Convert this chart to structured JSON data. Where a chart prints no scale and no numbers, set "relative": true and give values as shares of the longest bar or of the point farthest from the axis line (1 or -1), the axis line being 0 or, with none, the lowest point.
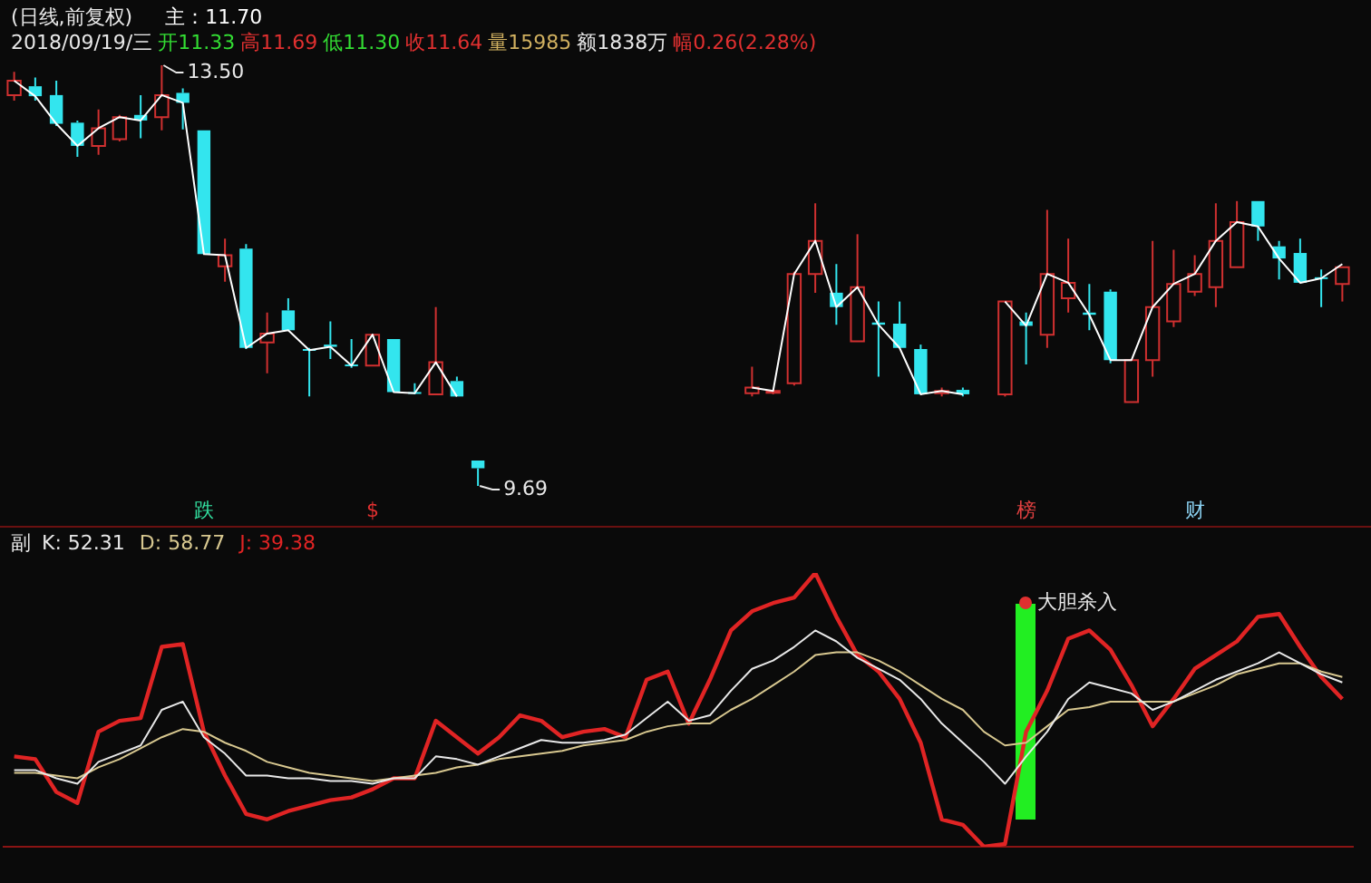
{
  "chart_data": [
    {
      "type": "candlestick",
      "title": "(日线,前复权)",
      "subtitle": "2018/09/19/三 开11.33 高11.69 低11.30 收11.64 量15985 额1838万 幅0.26(2.28%)",
      "categories": [
        null,
        null,
        null,
        null,
        null,
        null,
        null,
        null,
        null,
        null,
        null,
        null,
        null,
        null,
        null,
        null,
        null,
        null,
        null,
        null,
        null,
        null,
        null,
        null,
        null,
        null,
        null,
        null,
        null,
        null,
        null,
        null,
        null,
        null,
        null,
        null,
        null,
        null,
        null,
        null,
        null,
        null,
        null,
        null,
        null,
        null,
        null,
        null,
        null,
        null,
        null,
        null,
        null,
        null,
        null,
        null,
        null,
        null,
        null,
        null,
        null,
        null,
        null,
        null
      ],
      "ohlc": [
        [
          13.23,
          13.44,
          13.18,
          13.36
        ],
        [
          13.31,
          13.39,
          13.18,
          13.22
        ],
        [
          13.23,
          13.36,
          12.95,
          12.97
        ],
        [
          12.98,
          13.0,
          12.67,
          12.77
        ],
        [
          12.77,
          13.1,
          12.69,
          12.93
        ],
        [
          12.83,
          13.05,
          12.81,
          13.03
        ],
        [
          13.05,
          13.23,
          12.84,
          13.0
        ],
        [
          13.03,
          13.5,
          12.91,
          13.23
        ],
        [
          13.25,
          13.29,
          12.92,
          13.16
        ],
        [
          12.91,
          12.91,
          11.79,
          11.79
        ],
        [
          11.68,
          11.93,
          11.54,
          11.78
        ],
        [
          11.84,
          11.88,
          10.93,
          10.94
        ],
        [
          10.99,
          11.26,
          10.71,
          11.07
        ],
        [
          11.28,
          11.39,
          11.1,
          11.1
        ],
        [
          10.93,
          10.94,
          10.5,
          10.92
        ],
        [
          10.97,
          11.18,
          10.84,
          10.95
        ],
        [
          10.79,
          11.02,
          10.76,
          10.78
        ],
        [
          10.78,
          11.06,
          10.78,
          11.06
        ],
        [
          11.02,
          11.02,
          10.54,
          10.54
        ],
        [
          10.54,
          10.62,
          10.52,
          10.53
        ],
        [
          10.52,
          11.31,
          10.52,
          10.81
        ],
        [
          10.64,
          10.68,
          10.5,
          10.5
        ],
        [
          9.92,
          9.92,
          9.69,
          9.85
        ],
        null,
        null,
        null,
        null,
        null,
        null,
        null,
        null,
        null,
        null,
        null,
        null,
        [
          10.53,
          10.77,
          10.5,
          10.58
        ],
        [
          10.54,
          10.56,
          10.52,
          10.55
        ],
        [
          10.62,
          11.63,
          10.6,
          11.61
        ],
        [
          11.61,
          12.25,
          11.44,
          11.91
        ],
        [
          11.44,
          11.7,
          11.15,
          11.31
        ],
        [
          11.0,
          11.97,
          11.0,
          11.49
        ],
        [
          11.17,
          11.36,
          10.68,
          11.15
        ],
        [
          11.16,
          11.36,
          10.94,
          10.94
        ],
        [
          10.93,
          10.97,
          10.52,
          10.52
        ],
        [
          10.53,
          10.58,
          10.5,
          10.55
        ],
        [
          10.56,
          10.58,
          10.5,
          10.52
        ],
        null,
        [
          10.52,
          11.36,
          10.5,
          11.36
        ],
        [
          11.18,
          11.26,
          10.79,
          11.14
        ],
        [
          11.06,
          12.19,
          10.94,
          11.61
        ],
        [
          11.39,
          11.93,
          11.26,
          11.53
        ],
        [
          11.26,
          11.52,
          11.1,
          11.24
        ],
        [
          11.45,
          11.47,
          10.8,
          10.83
        ],
        [
          10.45,
          10.83,
          10.45,
          10.83
        ],
        [
          10.83,
          11.91,
          10.68,
          11.31
        ],
        [
          11.18,
          11.83,
          11.13,
          11.52
        ],
        [
          11.45,
          11.78,
          11.41,
          11.61
        ],
        [
          11.49,
          12.25,
          11.31,
          11.91
        ],
        [
          11.67,
          12.27,
          11.67,
          12.08
        ],
        [
          12.27,
          12.27,
          11.91,
          12.04
        ],
        [
          11.86,
          11.91,
          11.56,
          11.75
        ],
        [
          11.8,
          11.93,
          11.53,
          11.53
        ],
        [
          11.58,
          11.65,
          11.31,
          11.57
        ],
        [
          11.52,
          11.67,
          11.36,
          11.67
        ]
      ],
      "series": [
        {
          "type": "line",
          "name": "主：11.70",
          "color": "#ffffff",
          "values": [
            13.36,
            13.22,
            12.97,
            12.77,
            12.93,
            13.03,
            13.0,
            13.23,
            13.16,
            11.79,
            11.78,
            10.94,
            11.07,
            11.1,
            10.92,
            10.95,
            10.78,
            11.06,
            10.54,
            10.53,
            10.81,
            10.5,
            null,
            null,
            null,
            null,
            null,
            null,
            null,
            null,
            null,
            null,
            null,
            null,
            null,
            10.58,
            10.55,
            11.61,
            11.91,
            11.31,
            11.49,
            11.15,
            10.94,
            10.52,
            10.55,
            10.52,
            null,
            11.36,
            11.14,
            11.61,
            11.53,
            11.24,
            10.83,
            10.83,
            11.31,
            11.52,
            11.61,
            11.91,
            12.08,
            12.04,
            11.75,
            11.53,
            11.57,
            11.7
          ]
        }
      ],
      "annotations": [
        "13.50",
        "9.69",
        "跌",
        "$",
        "榜",
        "财"
      ]
    },
    {
      "type": "line",
      "title": "副",
      "relative": true,
      "categories": [
        null,
        null,
        null,
        null,
        null,
        null,
        null,
        null,
        null,
        null,
        null,
        null,
        null,
        null,
        null,
        null,
        null,
        null,
        null,
        null,
        null,
        null,
        null,
        null,
        null,
        null,
        null,
        null,
        null,
        null,
        null,
        null,
        null,
        null,
        null,
        null,
        null,
        null,
        null,
        null,
        null,
        null,
        null,
        null,
        null,
        null,
        null,
        null,
        null,
        null,
        null,
        null,
        null,
        null,
        null,
        null,
        null,
        null,
        null,
        null,
        null,
        null,
        null,
        null
      ],
      "series": [
        {
          "name": "K: 52.31",
          "color": "#e8e8e8",
          "values": [
            0.28,
            0.28,
            0.25,
            0.23,
            0.31,
            0.34,
            0.37,
            0.5,
            0.53,
            0.4,
            0.34,
            0.26,
            0.26,
            0.25,
            0.25,
            0.24,
            0.24,
            0.23,
            0.25,
            0.25,
            0.33,
            0.32,
            0.3,
            0.33,
            0.36,
            0.39,
            0.38,
            0.38,
            0.39,
            0.41,
            0.47,
            0.53,
            0.46,
            0.48,
            0.57,
            0.65,
            0.68,
            0.73,
            0.79,
            0.75,
            0.69,
            0.65,
            0.61,
            0.54,
            0.45,
            0.38,
            0.31,
            0.23,
            0.33,
            0.42,
            0.54,
            0.6,
            0.58,
            0.56,
            0.5,
            0.53,
            0.57,
            0.61,
            0.64,
            0.67,
            0.71,
            0.67,
            0.63,
            0.6
          ]
        },
        {
          "name": "D: 58.77",
          "color": "#d8c890",
          "values": [
            0.27,
            0.27,
            0.26,
            0.25,
            0.29,
            0.32,
            0.36,
            0.4,
            0.43,
            0.42,
            0.38,
            0.35,
            0.31,
            0.29,
            0.27,
            0.26,
            0.25,
            0.24,
            0.25,
            0.26,
            0.27,
            0.29,
            0.3,
            0.32,
            0.33,
            0.34,
            0.35,
            0.37,
            0.38,
            0.39,
            0.42,
            0.44,
            0.45,
            0.45,
            0.5,
            0.54,
            0.59,
            0.64,
            0.7,
            0.71,
            0.71,
            0.68,
            0.64,
            0.59,
            0.54,
            0.5,
            0.42,
            0.37,
            0.38,
            0.44,
            0.5,
            0.51,
            0.53,
            0.53,
            0.53,
            0.53,
            0.56,
            0.59,
            0.63,
            0.65,
            0.67,
            0.67,
            0.64,
            0.62
          ]
        },
        {
          "name": "J: 39.38",
          "color": "#e02424",
          "values": [
            0.33,
            0.32,
            0.2,
            0.16,
            0.42,
            0.46,
            0.47,
            0.73,
            0.74,
            0.42,
            0.26,
            0.12,
            0.1,
            0.13,
            0.15,
            0.17,
            0.18,
            0.21,
            0.25,
            0.25,
            0.46,
            0.4,
            0.34,
            0.4,
            0.48,
            0.46,
            0.4,
            0.42,
            0.43,
            0.4,
            0.61,
            0.64,
            0.45,
            0.61,
            0.79,
            0.86,
            0.89,
            0.91,
            1,
            0.84,
            0.7,
            0.64,
            0.54,
            0.38,
            0.1,
            0.08,
            0,
            0.01,
            0.42,
            0.57,
            0.76,
            0.79,
            0.72,
            0.59,
            0.44,
            0.54,
            0.65,
            0.7,
            0.75,
            0.84,
            0.85,
            0.73,
            0.62,
            0.54
          ]
        }
      ],
      "annotations": [
        "大胆杀入"
      ]
    }
  ]
}
